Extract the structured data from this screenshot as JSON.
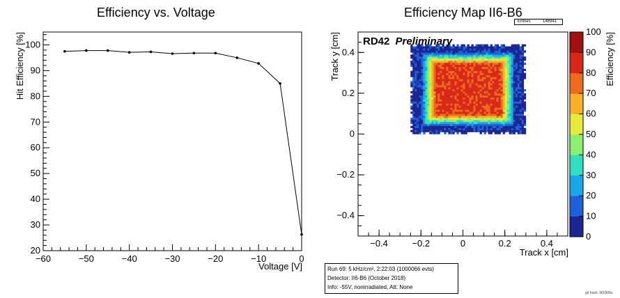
{
  "left_title": "Efficiency vs. Voltage",
  "right_title": "Efficiency Map II6-B6",
  "stats_box": {
    "label": "Entries",
    "value": "148941"
  },
  "info_box": {
    "run": "Run 69: 5 kHz/cm², 2:22:03 (1000066 evts)",
    "detector": "Detector: II6-B6 (October 2018)",
    "info": "Info:  -55V, nonirradiated, Att: None"
  },
  "git_hash": "git hash: 960306c",
  "chart_data": [
    {
      "type": "line",
      "title": "Efficiency vs. Voltage",
      "xlabel": "Voltage [V]",
      "ylabel": "Hit Efficiency [%]",
      "xlim": [
        -60,
        0
      ],
      "ylim": [
        20,
        105
      ],
      "x_ticks": [
        -60,
        -50,
        -40,
        -30,
        -20,
        -10,
        0
      ],
      "y_ticks": [
        20,
        30,
        40,
        50,
        60,
        70,
        80,
        90,
        100
      ],
      "x": [
        -55,
        -50,
        -45,
        -40,
        -35,
        -30,
        -25,
        -20,
        -15,
        -10,
        -5,
        0
      ],
      "y": [
        97.5,
        97.8,
        97.8,
        97.1,
        97.3,
        96.6,
        96.8,
        96.8,
        95.0,
        92.8,
        85.0,
        26.3
      ],
      "grid": false
    },
    {
      "type": "heatmap",
      "title": "Efficiency Map II6-B6",
      "xlabel": "Track x [cm]",
      "ylabel": "Track y [cm]",
      "zlabel": "Efficiency [%]",
      "xlim": [
        -0.5,
        0.5
      ],
      "ylim": [
        -0.5,
        0.5
      ],
      "zlim": [
        0,
        100
      ],
      "x_ticks": [
        -0.4,
        -0.2,
        0,
        0.2,
        0.4
      ],
      "x_tick_labels": [
        "−0.4",
        "−0.2",
        "0",
        "0.2",
        "0.4"
      ],
      "y_ticks": [
        -0.4,
        -0.2,
        0,
        0.2,
        0.4
      ],
      "y_tick_labels": [
        "−0.4",
        "−0.2",
        "0",
        "0.2",
        "0.4"
      ],
      "z_ticks": [
        0,
        10,
        20,
        30,
        40,
        50,
        60,
        70,
        80,
        90,
        100
      ],
      "annotation": {
        "bold": "RD42",
        "italic": "Preliminary"
      },
      "region": {
        "x_range": [
          -0.25,
          0.3
        ],
        "y_range": [
          0,
          0.44
        ],
        "inner_efficiency": 90,
        "edge_efficiency": 0
      },
      "colors": [
        "#1d2590",
        "#1e60d8",
        "#1aa7e8",
        "#2ee0c0",
        "#8af070",
        "#e7ea3a",
        "#f5b02c",
        "#ee6a1c",
        "#d8281a",
        "#a0110f"
      ]
    }
  ]
}
